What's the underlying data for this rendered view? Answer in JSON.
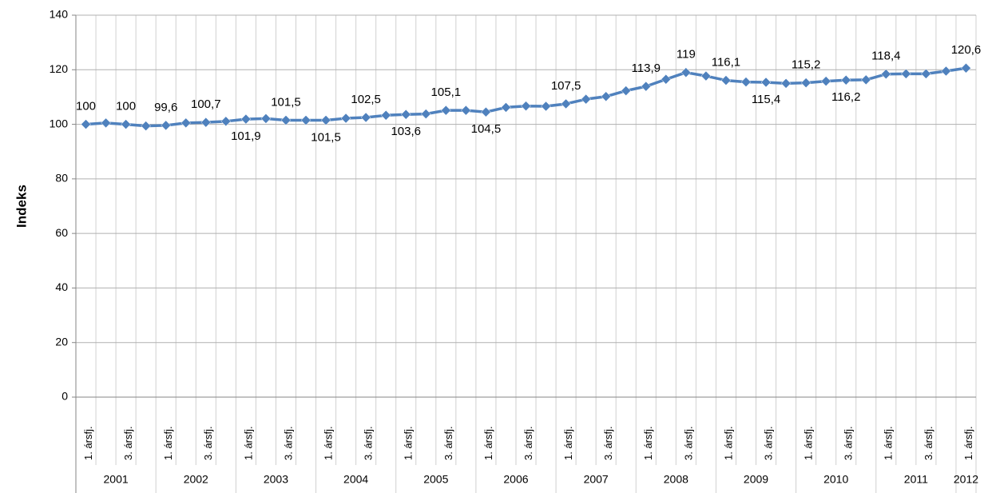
{
  "chart_data": {
    "type": "line",
    "y_label": "Indeks",
    "categories": [
      "1. ársfj.",
      null,
      "3. ársfj.",
      null,
      "1. ársfj.",
      null,
      "3. ársfj.",
      null,
      "1. ársfj.",
      null,
      "3. ársfj.",
      null,
      "1. ársfj.",
      null,
      "3. ársfj.",
      null,
      "1. ársfj.",
      null,
      "3. ársfj.",
      null,
      "1. ársfj.",
      null,
      "3. ársfj.",
      null,
      "1. ársfj.",
      null,
      "3. ársfj.",
      null,
      "1. ársfj.",
      null,
      "3. ársfj.",
      null,
      "1. ársfj.",
      null,
      "3. ársfj.",
      null,
      "1. ársfj.",
      null,
      "3. ársfj.",
      null,
      "1. ársfj.",
      null,
      "3. ársfj.",
      null,
      "1. ársfj."
    ],
    "groups": [
      "2001",
      "2002",
      "2003",
      "2004",
      "2005",
      "2006",
      "2007",
      "2008",
      "2009",
      "2010",
      "2011",
      "2012"
    ],
    "series": [
      {
        "name": "Indeks",
        "color": "#4f81bd",
        "values": [
          100,
          100.5,
          100,
          99.4,
          99.6,
          100.5,
          100.7,
          101.1,
          101.9,
          102.1,
          101.5,
          101.5,
          101.5,
          102.2,
          102.5,
          103.3,
          103.6,
          103.8,
          105.1,
          105.1,
          104.5,
          106.2,
          106.7,
          106.6,
          107.5,
          109.2,
          110.2,
          112.3,
          113.9,
          116.5,
          119,
          117.7,
          116.1,
          115.5,
          115.4,
          115.0,
          115.2,
          115.8,
          116.2,
          116.3,
          118.4,
          118.5,
          118.5,
          119.5,
          120.6
        ],
        "value_labels": [
          "100",
          null,
          "100",
          null,
          "99,6",
          null,
          "100,7",
          null,
          "101,9",
          null,
          "101,5",
          null,
          "101,5",
          null,
          "102,5",
          null,
          "103,6",
          null,
          "105,1",
          null,
          "104,5",
          null,
          null,
          null,
          "107,5",
          null,
          null,
          null,
          "113,9",
          null,
          "119",
          null,
          "116,1",
          null,
          "115,4",
          null,
          "115,2",
          null,
          "116,2",
          null,
          "118,4",
          null,
          null,
          null,
          "120,6"
        ]
      }
    ],
    "ylim": [
      0,
      140
    ],
    "yticks": [
      0,
      20,
      40,
      60,
      80,
      100,
      120,
      140
    ],
    "grid": true
  }
}
